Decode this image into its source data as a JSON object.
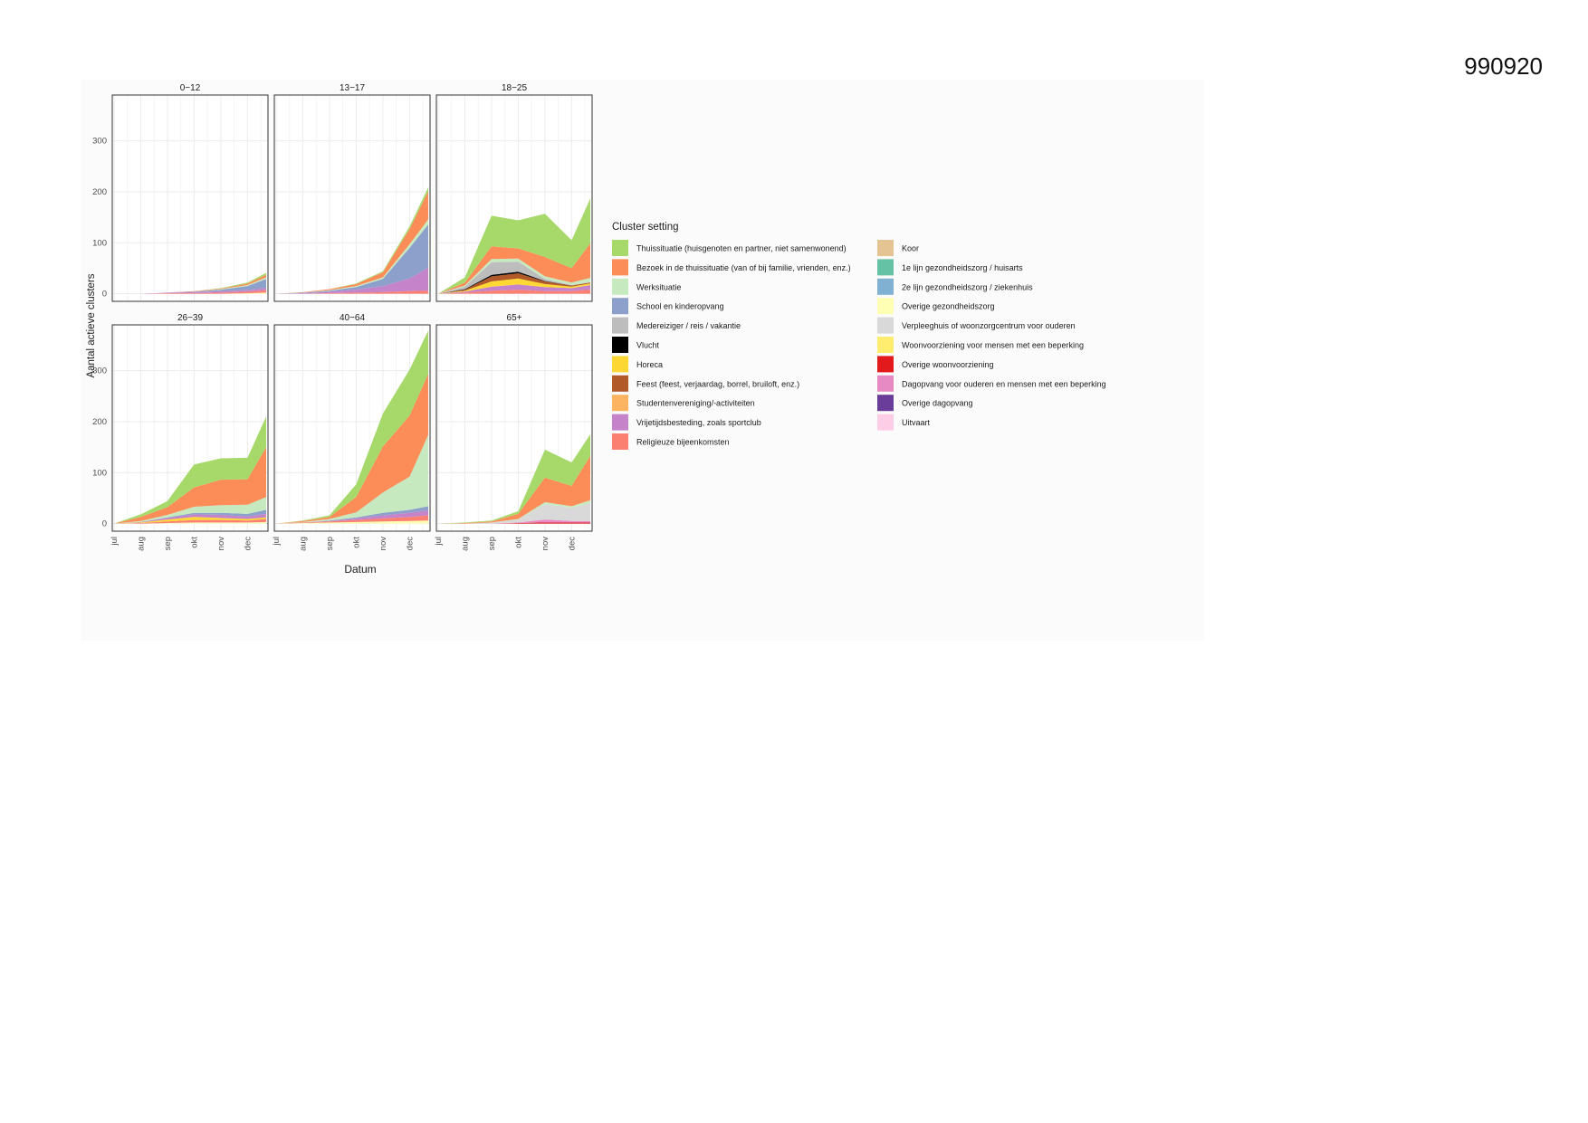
{
  "page_id": "990920",
  "chart_data": {
    "type": "area",
    "stacked": true,
    "facets": [
      "0−12",
      "13−17",
      "18−25",
      "26−39",
      "40−64",
      "65+"
    ],
    "xlabel": "Datum",
    "ylabel": "Aantal actieve clusters",
    "x_tick_labels": [
      "jul",
      "aug",
      "sep",
      "okt",
      "nov",
      "dec"
    ],
    "x_months": [
      0,
      1,
      2,
      3,
      4,
      5,
      5.7
    ],
    "y_ticks": [
      0,
      100,
      200,
      300
    ],
    "ylim": [
      -15,
      390
    ],
    "grid": true,
    "legend": {
      "title": "Cluster setting",
      "position": "right",
      "entries": [
        {
          "label": "Thuissituatie (huisgenoten en partner, niet samenwonend)",
          "color": "#a6d96a"
        },
        {
          "label": "Bezoek in de thuissituatie (van of bij familie, vrienden, enz.)",
          "color": "#fc8d59"
        },
        {
          "label": "Werksituatie",
          "color": "#c7e9c0"
        },
        {
          "label": "School en kinderopvang",
          "color": "#8da0cb"
        },
        {
          "label": "Medereiziger / reis / vakantie",
          "color": "#bdbdbd"
        },
        {
          "label": "Vlucht",
          "color": "#000000"
        },
        {
          "label": "Horeca",
          "color": "#fdd835"
        },
        {
          "label": "Feest (feest, verjaardag, borrel, bruiloft, enz.)",
          "color": "#b15928"
        },
        {
          "label": "Studentenvereniging/-activiteiten",
          "color": "#fdb462"
        },
        {
          "label": "Vrijetijdsbesteding, zoals sportclub",
          "color": "#c583c9"
        },
        {
          "label": "Religieuze bijeenkomsten",
          "color": "#fb8072"
        },
        {
          "label": "Koor",
          "color": "#e5c494"
        },
        {
          "label": "1e lijn gezondheidszorg / huisarts",
          "color": "#66c2a5"
        },
        {
          "label": "2e lijn gezondheidszorg / ziekenhuis",
          "color": "#80b1d3"
        },
        {
          "label": "Overige gezondheidszorg",
          "color": "#ffffb3"
        },
        {
          "label": "Verpleeghuis of woonzorgcentrum voor ouderen",
          "color": "#d9d9d9"
        },
        {
          "label": "Woonvoorziening voor mensen met een beperking",
          "color": "#ffed6f"
        },
        {
          "label": "Overige woonvoorziening",
          "color": "#e31a1c"
        },
        {
          "label": "Dagopvang voor ouderen en mensen met een beperking",
          "color": "#e78ac3"
        },
        {
          "label": "Overige dagopvang",
          "color": "#6a3d9a"
        },
        {
          "label": "Uitvaart",
          "color": "#fccde5"
        }
      ]
    },
    "series_by_facet": {
      "0−12": [
        {
          "name": "Overige gezondheidszorg",
          "values": [
            0,
            0,
            0,
            0,
            0,
            1,
            2
          ]
        },
        {
          "name": "Religieuze bijeenkomsten",
          "values": [
            0,
            0,
            1,
            1,
            2,
            3,
            5
          ]
        },
        {
          "name": "Vrijetijdsbesteding, zoals sportclub",
          "values": [
            0,
            0,
            1,
            2,
            3,
            3,
            4
          ]
        },
        {
          "name": "School en kinderopvang",
          "values": [
            0,
            0,
            0,
            1,
            3,
            8,
            18
          ]
        },
        {
          "name": "Werksituatie",
          "values": [
            0,
            0,
            0,
            0,
            1,
            2,
            3
          ]
        },
        {
          "name": "Bezoek in de thuissituatie (van of bij familie, vrienden, enz.)",
          "values": [
            0,
            0,
            0,
            1,
            1,
            3,
            5
          ]
        },
        {
          "name": "Thuissituatie (huisgenoten en partner, niet samenwonend)",
          "values": [
            0,
            0,
            0,
            0,
            1,
            2,
            4
          ]
        }
      ],
      "13−17": [
        {
          "name": "Religieuze bijeenkomsten",
          "values": [
            0,
            0,
            1,
            2,
            3,
            5,
            6
          ]
        },
        {
          "name": "Vrijetijdsbesteding, zoals sportclub",
          "values": [
            0,
            1,
            3,
            6,
            12,
            25,
            45
          ]
        },
        {
          "name": "School en kinderopvang",
          "values": [
            0,
            1,
            2,
            5,
            14,
            60,
            85
          ]
        },
        {
          "name": "Werksituatie",
          "values": [
            0,
            0,
            1,
            2,
            3,
            7,
            10
          ]
        },
        {
          "name": "Bezoek in de thuissituatie (van of bij familie, vrienden, enz.)",
          "values": [
            0,
            1,
            2,
            4,
            10,
            30,
            55
          ]
        },
        {
          "name": "Thuissituatie (huisgenoten en partner, niet samenwonend)",
          "values": [
            0,
            0,
            0,
            1,
            2,
            5,
            8
          ]
        }
      ],
      "18−25": [
        {
          "name": "Religieuze bijeenkomsten",
          "values": [
            0,
            2,
            6,
            8,
            5,
            5,
            8
          ]
        },
        {
          "name": "Vrijetijdsbesteding, zoals sportclub",
          "values": [
            0,
            2,
            8,
            10,
            8,
            6,
            9
          ]
        },
        {
          "name": "Horeca",
          "values": [
            0,
            2,
            10,
            12,
            6,
            3,
            3
          ]
        },
        {
          "name": "Feest (feest, verjaardag, borrel, bruiloft, enz.)",
          "values": [
            0,
            2,
            10,
            10,
            5,
            2,
            2
          ]
        },
        {
          "name": "Vlucht",
          "values": [
            0,
            1,
            3,
            3,
            1,
            0,
            0
          ]
        },
        {
          "name": "Medereiziger / reis / vakantie",
          "values": [
            0,
            5,
            25,
            20,
            4,
            1,
            1
          ]
        },
        {
          "name": "Werksituatie",
          "values": [
            0,
            2,
            6,
            6,
            5,
            5,
            8
          ]
        },
        {
          "name": "Bezoek in de thuissituatie (van of bij familie, vrienden, enz.)",
          "values": [
            0,
            6,
            25,
            20,
            38,
            28,
            68
          ]
        },
        {
          "name": "Thuissituatie (huisgenoten en partner, niet samenwonend)",
          "values": [
            0,
            10,
            60,
            55,
            85,
            55,
            88
          ]
        }
      ],
      "26−39": [
        {
          "name": "Overige gezondheidszorg",
          "values": [
            0,
            0,
            1,
            2,
            2,
            2,
            3
          ]
        },
        {
          "name": "Religieuze bijeenkomsten",
          "values": [
            0,
            1,
            3,
            5,
            5,
            4,
            6
          ]
        },
        {
          "name": "Horeca",
          "values": [
            0,
            1,
            4,
            6,
            4,
            3,
            3
          ]
        },
        {
          "name": "Vrijetijdsbesteding, zoals sportclub",
          "values": [
            0,
            1,
            3,
            5,
            6,
            5,
            7
          ]
        },
        {
          "name": "School en kinderopvang",
          "values": [
            0,
            0,
            1,
            3,
            4,
            5,
            8
          ]
        },
        {
          "name": "Werksituatie",
          "values": [
            0,
            2,
            5,
            12,
            15,
            18,
            25
          ]
        },
        {
          "name": "Bezoek in de thuissituatie (van of bij familie, vrienden, enz.)",
          "values": [
            0,
            8,
            15,
            38,
            50,
            50,
            98
          ]
        },
        {
          "name": "Thuissituatie (huisgenoten en partner, niet samenwonend)",
          "values": [
            0,
            5,
            12,
            45,
            42,
            42,
            60
          ]
        }
      ],
      "40−64": [
        {
          "name": "Overige gezondheidszorg",
          "values": [
            0,
            1,
            2,
            3,
            4,
            5,
            6
          ]
        },
        {
          "name": "Religieuze bijeenkomsten",
          "values": [
            0,
            1,
            2,
            4,
            6,
            8,
            10
          ]
        },
        {
          "name": "Vrijetijdsbesteding, zoals sportclub",
          "values": [
            0,
            0,
            1,
            3,
            6,
            8,
            10
          ]
        },
        {
          "name": "School en kinderopvang",
          "values": [
            0,
            0,
            1,
            2,
            5,
            6,
            8
          ]
        },
        {
          "name": "Werksituatie",
          "values": [
            0,
            1,
            3,
            10,
            40,
            65,
            140
          ]
        },
        {
          "name": "Bezoek in de thuissituatie (van of bij familie, vrienden, enz.)",
          "values": [
            0,
            2,
            4,
            30,
            90,
            120,
            120
          ]
        },
        {
          "name": "Thuissituatie (huisgenoten en partner, niet samenwonend)",
          "values": [
            0,
            1,
            3,
            25,
            65,
            90,
            85
          ]
        }
      ],
      "65+": [
        {
          "name": "Overige woonvoorziening",
          "values": [
            0,
            0,
            0,
            1,
            2,
            2,
            2
          ]
        },
        {
          "name": "Dagopvang voor ouderen en mensen met een beperking",
          "values": [
            0,
            0,
            0,
            1,
            6,
            3,
            3
          ]
        },
        {
          "name": "Verpleeghuis of woonzorgcentrum voor ouderen",
          "values": [
            0,
            0,
            2,
            6,
            30,
            26,
            35
          ]
        },
        {
          "name": "Werksituatie",
          "values": [
            0,
            0,
            0,
            1,
            4,
            3,
            6
          ]
        },
        {
          "name": "Bezoek in de thuissituatie (van of bij familie, vrienden, enz.)",
          "values": [
            0,
            1,
            2,
            10,
            48,
            40,
            87
          ]
        },
        {
          "name": "Thuissituatie (huisgenoten en partner, niet samenwonend)",
          "values": [
            0,
            1,
            2,
            5,
            55,
            46,
            42
          ]
        }
      ]
    }
  }
}
